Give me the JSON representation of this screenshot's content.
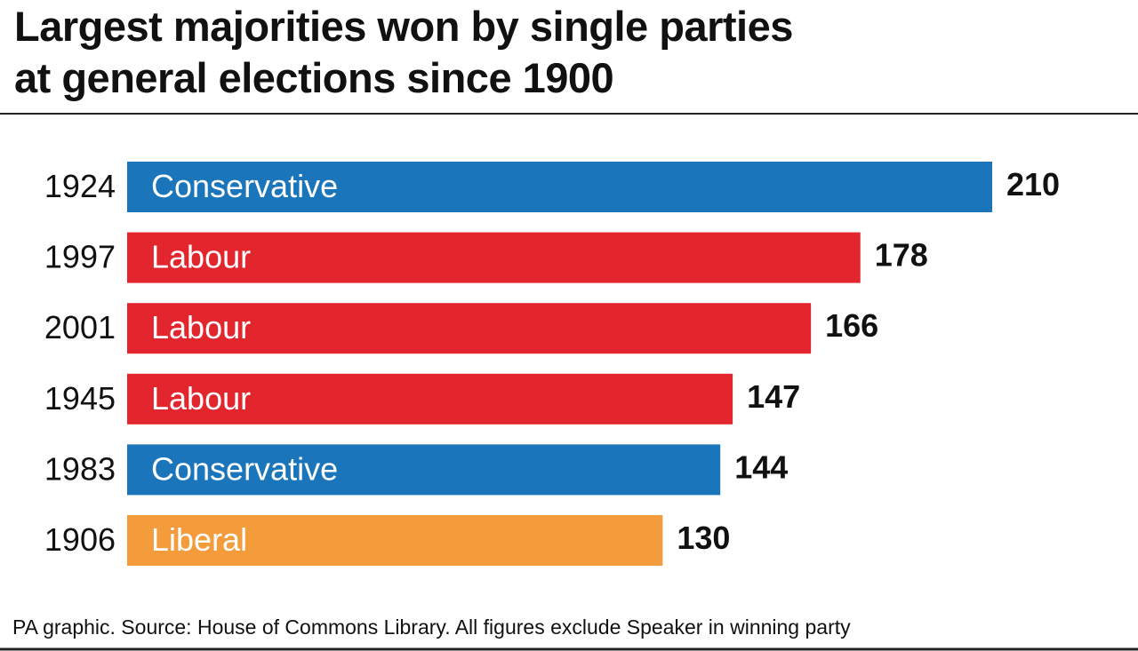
{
  "chart_data": {
    "type": "bar",
    "title": [
      "Largest majorities won by single parties",
      "at general elections since 1900"
    ],
    "categories": [
      "1924",
      "1997",
      "2001",
      "1945",
      "1983",
      "1906"
    ],
    "labels": [
      "Conservative",
      "Labour",
      "Labour",
      "Labour",
      "Conservative",
      "Liberal"
    ],
    "values": [
      210,
      178,
      166,
      147,
      144,
      130
    ],
    "colors": [
      "#1a75bb",
      "#e3262d",
      "#e3262d",
      "#e3262d",
      "#1a75bb",
      "#f49c3c"
    ],
    "xlim": [
      0,
      210
    ],
    "source": "PA graphic. Source: House of Commons Library. All figures exclude Speaker in winning party"
  }
}
